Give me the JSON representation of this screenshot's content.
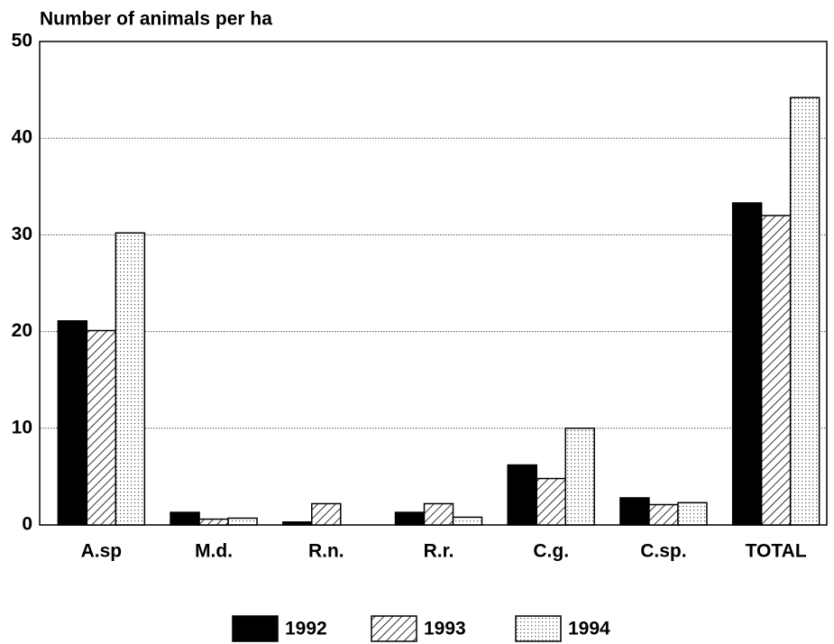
{
  "chart_data": {
    "type": "bar",
    "y_label": "Number of animals per ha",
    "categories": [
      "A.sp",
      "M.d.",
      "R.n.",
      "R.r.",
      "C.g.",
      "C.sp.",
      "TOTAL"
    ],
    "series": [
      {
        "name": "1992",
        "color": "#000000",
        "pattern": "solid",
        "values": [
          21.1,
          1.3,
          0.3,
          1.3,
          6.2,
          2.8,
          33.3
        ]
      },
      {
        "name": "1993",
        "color": "#000000",
        "pattern": "hatch",
        "values": [
          20.1,
          0.6,
          2.2,
          2.2,
          4.8,
          2.1,
          32.0
        ]
      },
      {
        "name": "1994",
        "color": "#000000",
        "pattern": "dots",
        "values": [
          30.2,
          0.7,
          0,
          0.8,
          10.0,
          2.3,
          44.2
        ]
      }
    ],
    "ylim": [
      0,
      50
    ],
    "yticks": [
      0,
      10,
      20,
      30,
      40,
      50
    ],
    "grid": true,
    "legend": "bottom"
  }
}
